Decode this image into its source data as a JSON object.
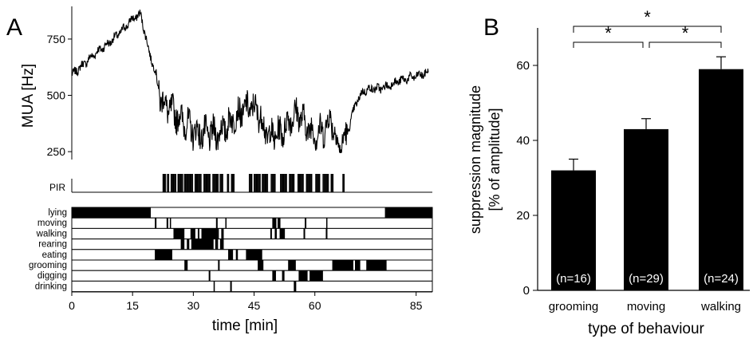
{
  "chart_data": [
    {
      "type": "line",
      "panel_label": "A",
      "ylabel": "MUA [Hz]",
      "xlabel": "time [min]",
      "x_ticks": [
        "0",
        "15",
        "30",
        "45",
        "60",
        "85"
      ],
      "x_tick_values": [
        0,
        15,
        30,
        45,
        60,
        85
      ],
      "xlim": [
        0,
        89
      ],
      "y_ticks": [
        "250",
        "500",
        "750"
      ],
      "y_tick_values": [
        250,
        500,
        750
      ],
      "ylim": [
        215,
        895
      ],
      "series": [
        {
          "x": [
            0,
            3,
            6,
            9,
            12,
            15,
            17,
            19,
            21,
            22,
            24,
            26,
            28,
            30,
            32,
            34,
            36,
            38,
            40,
            42,
            44,
            46,
            48,
            50,
            52,
            54,
            56,
            58,
            60,
            62,
            64,
            65,
            66,
            68,
            70,
            72,
            74,
            76,
            78,
            80,
            82,
            84,
            86,
            88
          ],
          "y": [
            590,
            640,
            690,
            730,
            780,
            840,
            860,
            700,
            580,
            480,
            440,
            410,
            380,
            340,
            330,
            330,
            330,
            360,
            400,
            430,
            450,
            430,
            330,
            320,
            340,
            400,
            420,
            360,
            330,
            340,
            400,
            330,
            260,
            330,
            460,
            520,
            530,
            530,
            540,
            560,
            570,
            580,
            590,
            600
          ]
        }
      ]
    },
    {
      "type": "table",
      "row_label": "PIR",
      "note_values": "event raster; on intervals in minutes",
      "intervals": [
        [
          22.5,
          23.2
        ],
        [
          23.6,
          24.1
        ],
        [
          24.5,
          25.8
        ],
        [
          26.2,
          27.4
        ],
        [
          27.8,
          29.9
        ],
        [
          30.4,
          32.1
        ],
        [
          32.6,
          34.3
        ],
        [
          34.8,
          36.2
        ],
        [
          36.6,
          37.4
        ],
        [
          38.4,
          38.9
        ],
        [
          39.4,
          40.2
        ],
        [
          43.8,
          44.5
        ],
        [
          45.0,
          46.6
        ],
        [
          47.0,
          48.4
        ],
        [
          49.2,
          50.3
        ],
        [
          51.5,
          53.1
        ],
        [
          53.7,
          55.0
        ],
        [
          55.8,
          57.3
        ],
        [
          57.9,
          59.4
        ],
        [
          60.2,
          61.3
        ],
        [
          62.0,
          63.4
        ],
        [
          64.0,
          64.6
        ],
        [
          66.9,
          67.4
        ]
      ]
    },
    {
      "type": "table",
      "xlabel": "time [min]",
      "behaviours": [
        {
          "label": "lying",
          "intervals": [
            [
              0,
              19.5
            ],
            [
              77.3,
              89
            ]
          ]
        },
        {
          "label": "moving",
          "intervals": [
            [
              20.5,
              20.9
            ],
            [
              23.4,
              23.8
            ],
            [
              24.2,
              24.5
            ],
            [
              35.6,
              36.0
            ],
            [
              37.9,
              38.2
            ],
            [
              49.5,
              50.5
            ],
            [
              50.8,
              51.5
            ],
            [
              57.5,
              57.9
            ],
            [
              62.8,
              63.1
            ]
          ]
        },
        {
          "label": "walking",
          "intervals": [
            [
              25.1,
              27.8
            ],
            [
              29.3,
              30.5
            ],
            [
              31.1,
              31.5
            ],
            [
              32.0,
              36.3
            ],
            [
              36.9,
              37.5
            ],
            [
              49.0,
              49.4
            ],
            [
              50.1,
              50.6
            ],
            [
              51.3,
              52.6
            ],
            [
              57.2,
              57.6
            ],
            [
              62.7,
              63.1
            ]
          ]
        },
        {
          "label": "rearing",
          "intervals": [
            [
              26.9,
              27.8
            ],
            [
              28.4,
              29.0
            ],
            [
              29.5,
              35.0
            ],
            [
              35.4,
              36.1
            ],
            [
              36.6,
              37.5
            ]
          ]
        },
        {
          "label": "eating",
          "intervals": [
            [
              20.5,
              24.8
            ],
            [
              38.6,
              39.8
            ],
            [
              40.5,
              41.0
            ],
            [
              43.0,
              47.0
            ]
          ]
        },
        {
          "label": "grooming",
          "intervals": [
            [
              27.8,
              28.6
            ],
            [
              36.1,
              36.5
            ],
            [
              45.9,
              47.3
            ],
            [
              53.4,
              55.3
            ],
            [
              64.3,
              69.5
            ],
            [
              69.9,
              71.2
            ],
            [
              72.7,
              77.7
            ]
          ]
        },
        {
          "label": "digging",
          "intervals": [
            [
              33.8,
              34.2
            ],
            [
              49.5,
              50.4
            ],
            [
              51.9,
              52.5
            ],
            [
              56.0,
              58.2
            ],
            [
              58.7,
              62.0
            ]
          ]
        },
        {
          "label": "drinking",
          "intervals": [
            [
              35.0,
              35.3
            ],
            [
              39.1,
              39.5
            ],
            [
              54.8,
              55.4
            ]
          ]
        }
      ]
    },
    {
      "type": "bar",
      "panel_label": "B",
      "title": "",
      "xlabel": "type of behaviour",
      "ylabel_line1": "suppression magnitude",
      "ylabel_line2": "[% of amplitude]",
      "categories": [
        "grooming",
        "moving",
        "walking"
      ],
      "values": [
        32,
        43,
        59
      ],
      "errors": [
        3,
        2.8,
        3.3
      ],
      "n_labels": [
        "(n=16)",
        "(n=29)",
        "(n=24)"
      ],
      "y_ticks": [
        "0",
        "20",
        "40",
        "60"
      ],
      "y_tick_values": [
        0,
        20,
        40,
        60
      ],
      "ylim": [
        0,
        70
      ],
      "significance": [
        {
          "from": 0,
          "to": 1,
          "label": "*"
        },
        {
          "from": 1,
          "to": 2,
          "label": "*"
        },
        {
          "from": 0,
          "to": 2,
          "label": "*"
        }
      ],
      "bar_color": "#000000",
      "n_label_color": "#ffffff"
    }
  ]
}
